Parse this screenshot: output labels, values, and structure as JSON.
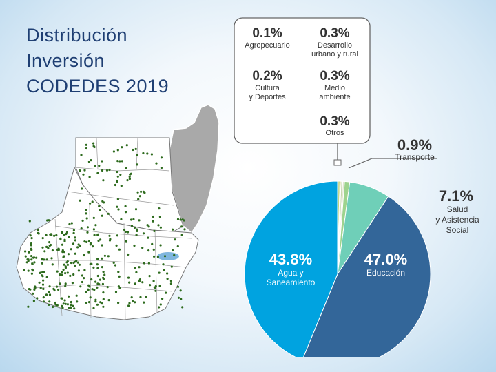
{
  "title_lines": [
    "Distribución",
    "Inversión",
    "CODEDES 2019"
  ],
  "chart_data": {
    "type": "pie",
    "title": "Distribución Inversión CODEDES 2019",
    "slices": [
      {
        "label": "Agua y Saneamiento",
        "value": 43.8,
        "text": "43.8%",
        "label_lines": [
          "Agua y",
          "Saneamiento"
        ],
        "color": "#00a3e0"
      },
      {
        "label": "Agropecuario",
        "value": 0.1,
        "text": "0.1%",
        "label_lines": [
          "Agropecuario"
        ],
        "color": "#8fb33c"
      },
      {
        "label": "Desarrollo urbano y rural",
        "value": 0.3,
        "text": "0.3%",
        "label_lines": [
          "Desarrollo",
          "urbano y rural"
        ],
        "color": "#b7cf6a"
      },
      {
        "label": "Cultura y Deportes",
        "value": 0.2,
        "text": "0.2%",
        "label_lines": [
          "Cultura",
          "y Deportes"
        ],
        "color": "#d6d98a"
      },
      {
        "label": "Medio ambiente",
        "value": 0.3,
        "text": "0.3%",
        "label_lines": [
          "Medio",
          "ambiente"
        ],
        "color": "#c9d6b0"
      },
      {
        "label": "Otros",
        "value": 0.3,
        "text": "0.3%",
        "label_lines": [
          "Otros"
        ],
        "color": "#e2e6d2"
      },
      {
        "label": "Transporte",
        "value": 0.9,
        "text": "0.9%",
        "label_lines": [
          "Transporte"
        ],
        "color": "#9ed38e"
      },
      {
        "label": "Salud y Asistencia Social",
        "value": 7.1,
        "text": "7.1%",
        "label_lines": [
          "Salud",
          "y Asistencia",
          "Social"
        ],
        "color": "#6fcfb8"
      },
      {
        "label": "Educación",
        "value": 47.0,
        "text": "47.0%",
        "label_lines": [
          "Educación"
        ],
        "color": "#336699"
      }
    ]
  }
}
